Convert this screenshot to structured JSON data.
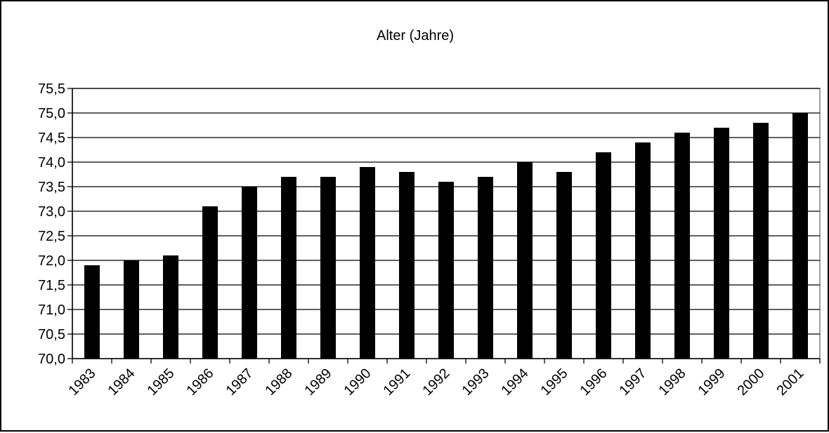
{
  "chart_data": {
    "type": "bar",
    "title": "Alter (Jahre)",
    "xlabel": "",
    "ylabel": "",
    "categories": [
      "1983",
      "1984",
      "1985",
      "1986",
      "1987",
      "1988",
      "1989",
      "1990",
      "1991",
      "1992",
      "1993",
      "1994",
      "1995",
      "1996",
      "1997",
      "1998",
      "1999",
      "2000",
      "2001"
    ],
    "values": [
      71.9,
      72.0,
      72.1,
      73.1,
      73.5,
      73.7,
      73.7,
      73.9,
      73.8,
      73.6,
      73.7,
      74.0,
      73.8,
      74.2,
      74.4,
      74.6,
      74.7,
      74.8,
      75.0
    ],
    "ylim": [
      70.0,
      75.5
    ],
    "yticks": [
      "70,0",
      "70,5",
      "71,0",
      "71,5",
      "72,0",
      "72,5",
      "73,0",
      "73,5",
      "74,0",
      "74,5",
      "75,0",
      "75,5"
    ],
    "grid": true,
    "legend": "none",
    "colors": {
      "bar": "#000000",
      "grid": "#000000",
      "plot_border": "#808080",
      "background": "#ffffff"
    }
  }
}
